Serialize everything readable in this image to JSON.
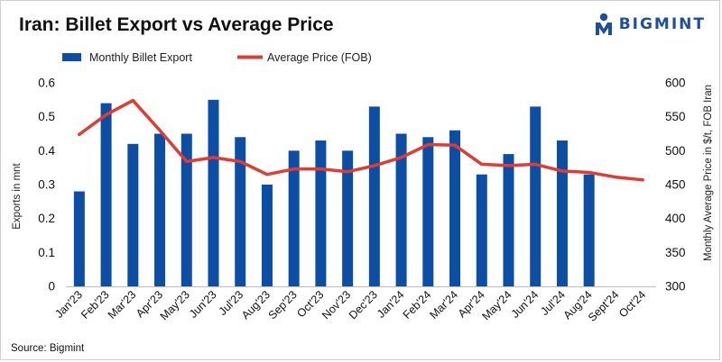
{
  "header": {
    "title": "Iran: Billet Export vs Average Price"
  },
  "logo": {
    "text": "BIGMINT",
    "color": "#1e4f9c"
  },
  "source": "Source: Bigmint",
  "colors": {
    "bar": "#0c4ea6",
    "line": "#e03c31"
  },
  "chart_data": {
    "type": "bar",
    "categories": [
      "Jan'23",
      "Feb'23",
      "Mar'23",
      "Apr'23",
      "May'23",
      "Jun'23",
      "Jul'23",
      "Aug'23",
      "Sep'23",
      "Oct'23",
      "Nov'23",
      "Dec'23",
      "Jan'24",
      "Feb'24",
      "Mar'24",
      "Apr'24",
      "May'24",
      "Jun'24",
      "Jul'24",
      "Aug'24",
      "Sept'24",
      "Oct'24"
    ],
    "series": [
      {
        "name": "Monthly Billet Export",
        "type": "bar",
        "axis": "left",
        "values": [
          0.28,
          0.54,
          0.42,
          0.45,
          0.45,
          0.55,
          0.44,
          0.3,
          0.4,
          0.43,
          0.4,
          0.53,
          0.45,
          0.44,
          0.46,
          0.33,
          0.39,
          0.53,
          0.43,
          0.33,
          null,
          null
        ]
      },
      {
        "name": "Average Price (FOB)",
        "type": "line",
        "axis": "right",
        "values": [
          524,
          553,
          574,
          530,
          484,
          490,
          484,
          465,
          473,
          473,
          469,
          478,
          490,
          509,
          508,
          480,
          478,
          480,
          470,
          468,
          461,
          457
        ]
      }
    ],
    "ylabel_left": "Exports in mnt",
    "ylabel_right": "Monthly Average Price in $/t, FOB Iran",
    "ylim_left": [
      0,
      0.6
    ],
    "ylim_right": [
      300,
      600
    ],
    "yticks_left": [
      "0",
      "0.1",
      "0.2",
      "0.3",
      "0.4",
      "0.5",
      "0.6"
    ],
    "yticks_right": [
      "300",
      "350",
      "400",
      "450",
      "500",
      "550",
      "600"
    ],
    "legend_position": "top-left",
    "grid": false
  }
}
